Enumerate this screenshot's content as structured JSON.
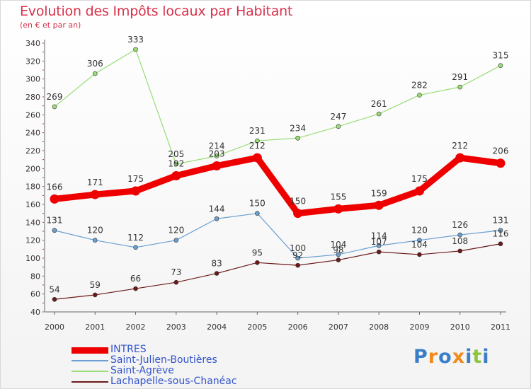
{
  "header": {
    "title": "Evolution des Impôts locaux par Habitant",
    "subtitle": "(en € et par an)"
  },
  "logo": {
    "text": "Proxiti",
    "colors": [
      "#3b7ec8",
      "#f08a1d",
      "#3b7ec8",
      "#f08a1d",
      "#3b7ec8",
      "#8cc63f",
      "#3b7ec8"
    ]
  },
  "colors": {
    "title": "#d9304a",
    "axis_tick": "#cc2244"
  },
  "chart_data": {
    "type": "line",
    "title": "Evolution des Impôts locaux par Habitant",
    "subtitle": "(en € et par an)",
    "xlabel": "",
    "ylabel": "",
    "categories": [
      "2000",
      "2001",
      "2002",
      "2003",
      "2004",
      "2005",
      "2006",
      "2007",
      "2008",
      "2009",
      "2010",
      "2011"
    ],
    "ylim": [
      40,
      340
    ],
    "yticks": [
      40,
      60,
      80,
      100,
      120,
      140,
      160,
      180,
      200,
      220,
      240,
      260,
      280,
      300,
      320,
      340
    ],
    "grid": false,
    "legend_position": "bottom-left",
    "series": [
      {
        "name": "INTRES",
        "color": "#ee0000",
        "values": [
          166,
          171,
          175,
          192,
          203,
          212,
          150,
          155,
          159,
          175,
          212,
          206
        ]
      },
      {
        "name": "Saint-Julien-Boutières",
        "color": "#6a9fd0",
        "values": [
          131,
          120,
          112,
          120,
          144,
          150,
          100,
          104,
          114,
          120,
          126,
          131
        ]
      },
      {
        "name": "Saint-Agrève",
        "color": "#99dd77",
        "values": [
          269,
          306,
          333,
          205,
          214,
          231,
          234,
          247,
          261,
          282,
          291,
          315
        ]
      },
      {
        "name": "Lachapelle-sous-Chanéac",
        "color": "#6b1a1a",
        "values": [
          54,
          59,
          66,
          73,
          83,
          95,
          92,
          98,
          107,
          104,
          108,
          116
        ]
      }
    ],
    "legend_text_colors": [
      "#3355cc",
      "#3355cc",
      "#3355cc",
      "#3355cc"
    ]
  }
}
